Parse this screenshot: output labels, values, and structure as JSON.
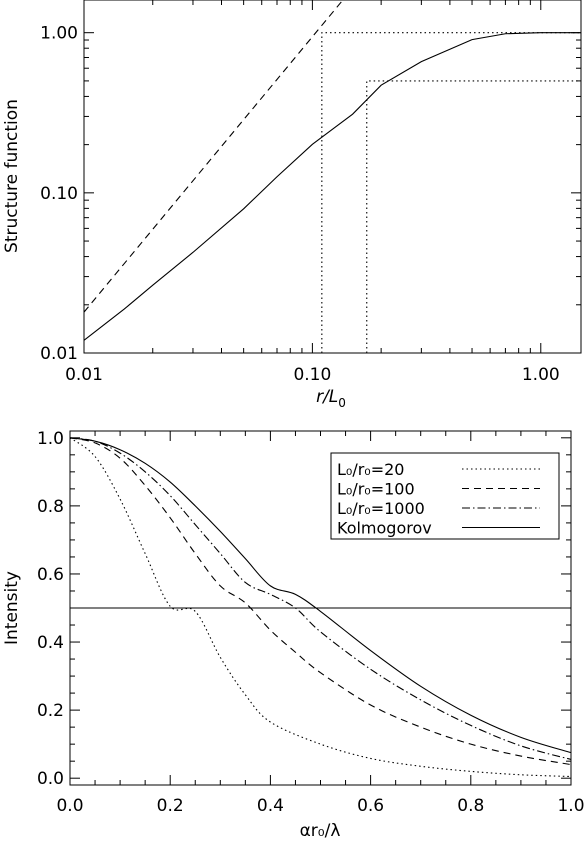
{
  "chart_data": [
    {
      "type": "line",
      "xscale": "log",
      "yscale": "log",
      "xlim": [
        0.01,
        1.5
      ],
      "ylim": [
        0.01,
        1.6
      ],
      "xticks": [
        {
          "v": 0.01,
          "label": "0.01"
        },
        {
          "v": 0.1,
          "label": "0.10"
        },
        {
          "v": 1.0,
          "label": "1.00"
        }
      ],
      "yticks": [
        {
          "v": 0.01,
          "label": "0.01"
        },
        {
          "v": 0.1,
          "label": "0.10"
        },
        {
          "v": 1.0,
          "label": "1.00"
        }
      ],
      "xlabel": "r/L",
      "xlabel_sub": "0",
      "ylabel": "Structure function",
      "series": [
        {
          "style": "solid",
          "x": [
            0.01,
            0.015,
            0.02,
            0.03,
            0.05,
            0.07,
            0.1,
            0.15,
            0.2,
            0.3,
            0.5,
            0.7,
            1.0,
            1.5
          ],
          "y": [
            0.012,
            0.0188,
            0.0265,
            0.0425,
            0.0795,
            0.126,
            0.201,
            0.31,
            0.47,
            0.66,
            0.905,
            0.985,
            1.0,
            1.0
          ]
        },
        {
          "style": "dashed",
          "x": [
            0.01,
            0.136
          ],
          "y": [
            0.018,
            1.6
          ]
        },
        {
          "style": "dotted",
          "x": [
            0.11,
            0.11,
            1.5
          ],
          "y": [
            0.01,
            1.0,
            1.0
          ]
        },
        {
          "style": "dotted",
          "x": [
            0.173,
            0.173,
            1.5
          ],
          "y": [
            0.01,
            0.5,
            0.5
          ]
        }
      ]
    },
    {
      "type": "line",
      "xlim": [
        0.0,
        1.0
      ],
      "ylim": [
        -0.02,
        1.02
      ],
      "xticks": [
        {
          "v": 0.0,
          "label": "0.0"
        },
        {
          "v": 0.2,
          "label": "0.2"
        },
        {
          "v": 0.4,
          "label": "0.4"
        },
        {
          "v": 0.6,
          "label": "0.6"
        },
        {
          "v": 0.8,
          "label": "0.8"
        },
        {
          "v": 1.0,
          "label": "1.0"
        }
      ],
      "yticks": [
        {
          "v": 0.0,
          "label": "0.0"
        },
        {
          "v": 0.2,
          "label": "0.2"
        },
        {
          "v": 0.4,
          "label": "0.4"
        },
        {
          "v": 0.6,
          "label": "0.6"
        },
        {
          "v": 0.8,
          "label": "0.8"
        },
        {
          "v": 1.0,
          "label": "1.0"
        }
      ],
      "xlabel": "αr₀/λ",
      "ylabel": "Intensity",
      "hline": 0.5,
      "legend_position": "top-right",
      "series": [
        {
          "name": "L₀/r₀=20",
          "style": "dotted",
          "x": [
            0.0,
            0.05,
            0.1,
            0.15,
            0.2,
            0.25,
            0.3,
            0.35,
            0.4,
            0.5,
            0.6,
            0.7,
            0.8,
            0.9,
            1.0
          ],
          "y": [
            1.0,
            0.945,
            0.82,
            0.66,
            0.505,
            0.49,
            0.355,
            0.245,
            0.165,
            0.1,
            0.058,
            0.035,
            0.02,
            0.01,
            0.005
          ]
        },
        {
          "name": "L₀/r₀=100",
          "style": "dashed",
          "x": [
            0.0,
            0.05,
            0.1,
            0.15,
            0.2,
            0.25,
            0.3,
            0.35,
            0.4,
            0.45,
            0.5,
            0.6,
            0.7,
            0.8,
            0.9,
            1.0
          ],
          "y": [
            1.0,
            0.985,
            0.94,
            0.86,
            0.765,
            0.66,
            0.565,
            0.515,
            0.435,
            0.37,
            0.31,
            0.215,
            0.15,
            0.1,
            0.065,
            0.04
          ]
        },
        {
          "name": "L₀/r₀=1000",
          "style": "dashdot",
          "x": [
            0.0,
            0.05,
            0.1,
            0.15,
            0.2,
            0.25,
            0.3,
            0.35,
            0.4,
            0.45,
            0.5,
            0.6,
            0.7,
            0.8,
            0.9,
            1.0
          ],
          "y": [
            1.0,
            0.99,
            0.955,
            0.9,
            0.83,
            0.745,
            0.66,
            0.575,
            0.54,
            0.5,
            0.43,
            0.32,
            0.23,
            0.155,
            0.095,
            0.055
          ]
        },
        {
          "name": "Kolmogorov",
          "style": "solid",
          "x": [
            0.0,
            0.05,
            0.1,
            0.15,
            0.2,
            0.25,
            0.3,
            0.35,
            0.4,
            0.45,
            0.5,
            0.6,
            0.7,
            0.8,
            0.9,
            1.0
          ],
          "y": [
            1.0,
            0.99,
            0.965,
            0.925,
            0.87,
            0.8,
            0.725,
            0.645,
            0.565,
            0.54,
            0.49,
            0.375,
            0.27,
            0.185,
            0.12,
            0.075
          ]
        }
      ]
    }
  ]
}
